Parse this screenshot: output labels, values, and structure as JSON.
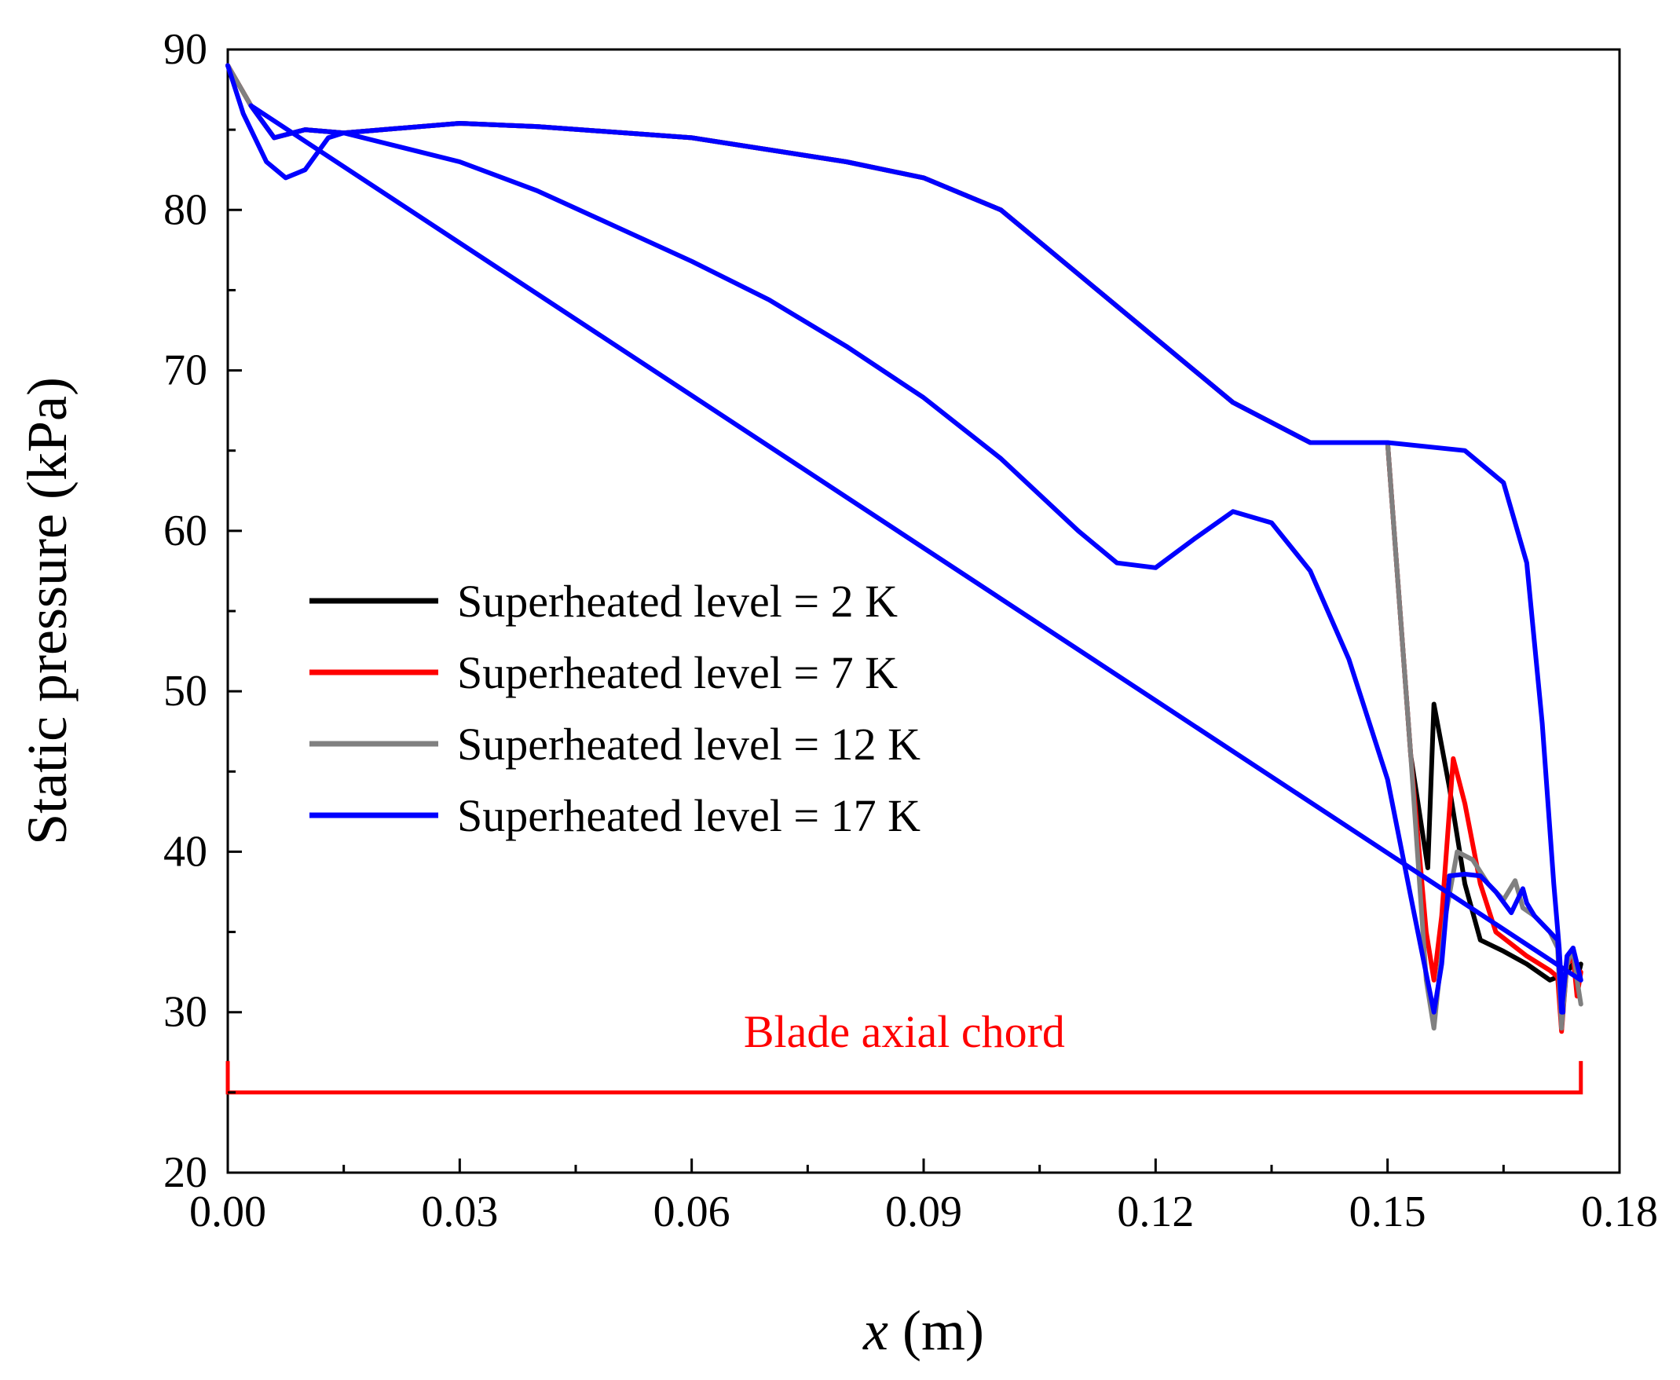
{
  "chart_data": {
    "type": "line",
    "title": "",
    "xlabel_var": "x",
    "xlabel_unit": " (m)",
    "ylabel": "Static pressure (kPa)",
    "xlim": [
      0.0,
      0.18
    ],
    "ylim": [
      20,
      90
    ],
    "xticks": [
      "0.00",
      "0.03",
      "0.06",
      "0.09",
      "0.12",
      "0.15",
      "0.18"
    ],
    "xtick_values": [
      0.0,
      0.03,
      0.06,
      0.09,
      0.12,
      0.15,
      0.18
    ],
    "yticks": [
      "20",
      "30",
      "40",
      "50",
      "60",
      "70",
      "80",
      "90"
    ],
    "ytick_values": [
      20,
      30,
      40,
      50,
      60,
      70,
      80,
      90
    ],
    "legend_position": "center-left",
    "grid": false,
    "series": [
      {
        "name": "Superheated level = 2 K",
        "color": "#000000",
        "x": [
          0.0,
          0.003,
          0.006,
          0.01,
          0.015,
          0.02,
          0.03,
          0.04,
          0.06,
          0.08,
          0.09,
          0.1,
          0.11,
          0.12,
          0.13,
          0.14,
          0.15,
          0.153,
          0.1552,
          0.156,
          0.158,
          0.16,
          0.162,
          0.165,
          0.168,
          0.171,
          0.172,
          0.1725,
          0.1732,
          0.174,
          0.1745,
          0.175
        ],
        "y": [
          89,
          86.5,
          84.5,
          85,
          84.8,
          85,
          85.4,
          85.2,
          84.5,
          83,
          82,
          80,
          76,
          72,
          68,
          65.5,
          65.5,
          46,
          39,
          49.2,
          44,
          38,
          34.5,
          33.8,
          33,
          32,
          32.2,
          32,
          32.5,
          33,
          32,
          33
        ]
      },
      {
        "name": "Superheated level = 7 K",
        "color": "#ff0000",
        "x": [
          0.0,
          0.003,
          0.006,
          0.01,
          0.015,
          0.02,
          0.03,
          0.04,
          0.06,
          0.08,
          0.09,
          0.1,
          0.11,
          0.12,
          0.13,
          0.14,
          0.15,
          0.153,
          0.155,
          0.156,
          0.157,
          0.1585,
          0.16,
          0.162,
          0.164,
          0.168,
          0.171,
          0.172,
          0.1725,
          0.1732,
          0.174,
          0.1745,
          0.175
        ],
        "y": [
          89,
          86.5,
          84.5,
          85,
          84.8,
          85,
          85.4,
          85.2,
          84.5,
          83,
          82,
          80,
          76,
          72,
          68,
          65.5,
          65.5,
          46,
          35,
          32,
          36,
          45.8,
          43,
          38,
          35,
          33.5,
          32.6,
          32.2,
          28.8,
          33,
          33.5,
          31,
          32.5
        ]
      },
      {
        "name": "Superheated level = 12 K",
        "color": "#808080",
        "x": [
          0.0,
          0.003,
          0.006,
          0.01,
          0.015,
          0.02,
          0.03,
          0.04,
          0.06,
          0.08,
          0.09,
          0.1,
          0.11,
          0.12,
          0.13,
          0.14,
          0.15,
          0.153,
          0.155,
          0.156,
          0.1575,
          0.159,
          0.161,
          0.163,
          0.165,
          0.1665,
          0.1675,
          0.169,
          0.171,
          0.172,
          0.1725,
          0.1732,
          0.174,
          0.1745,
          0.175
        ],
        "y": [
          89,
          86.5,
          84.5,
          85,
          84.8,
          85,
          85.4,
          85.2,
          84.5,
          83,
          82,
          80,
          76,
          72,
          68,
          65.5,
          65.5,
          46,
          32,
          29,
          36,
          40,
          39.5,
          38,
          37,
          38.2,
          36.5,
          36,
          35,
          34,
          29,
          33,
          34,
          32,
          30.5
        ]
      },
      {
        "name": "Superheated level = 17 K",
        "color": "#0000ff",
        "x": [
          0.0,
          0.002,
          0.005,
          0.0075,
          0.01,
          0.013,
          0.015,
          0.02,
          0.03,
          0.04,
          0.05,
          0.06,
          0.07,
          0.08,
          0.09,
          0.1,
          0.11,
          0.115,
          0.12,
          0.125,
          0.13,
          0.135,
          0.14,
          0.145,
          0.15,
          0.1535,
          0.156,
          0.157,
          0.158,
          0.16,
          0.162,
          0.164,
          0.166,
          0.1675,
          0.168,
          0.169,
          0.171,
          0.172,
          0.1725,
          0.1732,
          0.174,
          0.1745,
          0.175,
          0.003,
          0.006,
          0.01,
          0.015,
          0.02,
          0.03,
          0.04,
          0.06,
          0.08,
          0.09,
          0.1,
          0.11,
          0.12,
          0.13,
          0.14,
          0.15,
          0.16,
          0.165,
          0.168,
          0.17,
          0.1715,
          0.1722,
          0.1727
        ],
        "y": [
          89,
          86,
          83,
          82,
          82.5,
          84.5,
          84.8,
          84.2,
          83,
          81.2,
          79,
          76.8,
          74.4,
          71.5,
          68.3,
          64.5,
          60,
          58,
          57.7,
          59.5,
          61.2,
          60.5,
          57.5,
          52,
          44.5,
          36,
          30,
          33,
          38.5,
          38.6,
          38.5,
          37.5,
          36.2,
          37.7,
          36.8,
          36,
          35,
          34.5,
          30,
          33.5,
          34,
          33,
          32,
          86.5,
          84.5,
          85,
          84.8,
          85,
          85.4,
          85.2,
          84.5,
          83,
          82,
          80,
          76,
          72,
          68,
          65.5,
          65.5,
          65,
          63,
          58,
          48,
          38,
          34,
          30
        ]
      }
    ],
    "annotation": {
      "label": "Blade axial chord",
      "x_start": 0.0,
      "x_end": 0.175,
      "y": 25,
      "color": "#ff0000"
    }
  }
}
